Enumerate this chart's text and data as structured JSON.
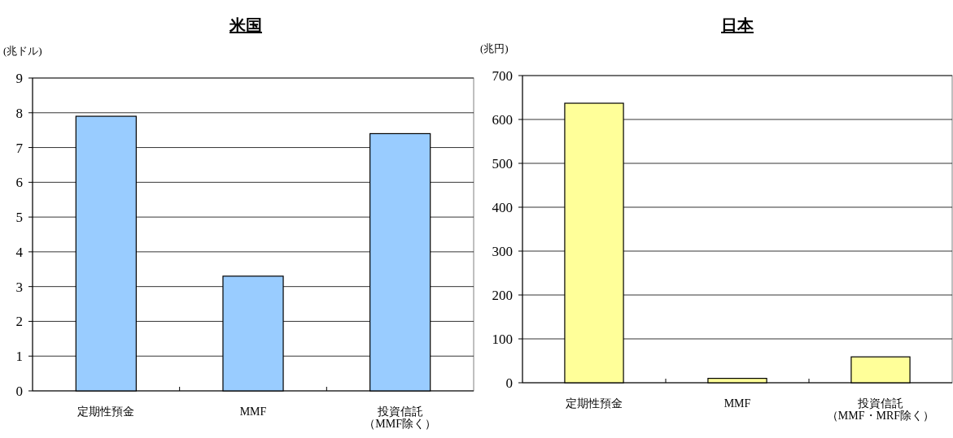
{
  "chart_data": [
    {
      "type": "bar",
      "title": "米国",
      "ylabel": "(兆ドル)",
      "categories": [
        "定期性預金",
        "MMF",
        "投資信託（MMF除く）"
      ],
      "values": [
        7.9,
        3.3,
        7.4
      ],
      "color": "#99ccff",
      "ylim": [
        0,
        9
      ],
      "yticks": [
        0,
        1,
        2,
        3,
        4,
        5,
        6,
        7,
        8,
        9
      ],
      "grid": "y"
    },
    {
      "type": "bar",
      "title": "日本",
      "ylabel": "(兆円)",
      "categories": [
        "定期性預金",
        "MMF",
        "投資信託（MMF・MRF除く）"
      ],
      "values": [
        637,
        10,
        59
      ],
      "color": "#ffff99",
      "ylim": [
        0,
        700
      ],
      "yticks": [
        0,
        100,
        200,
        300,
        400,
        500,
        600,
        700
      ],
      "grid": "y"
    }
  ]
}
